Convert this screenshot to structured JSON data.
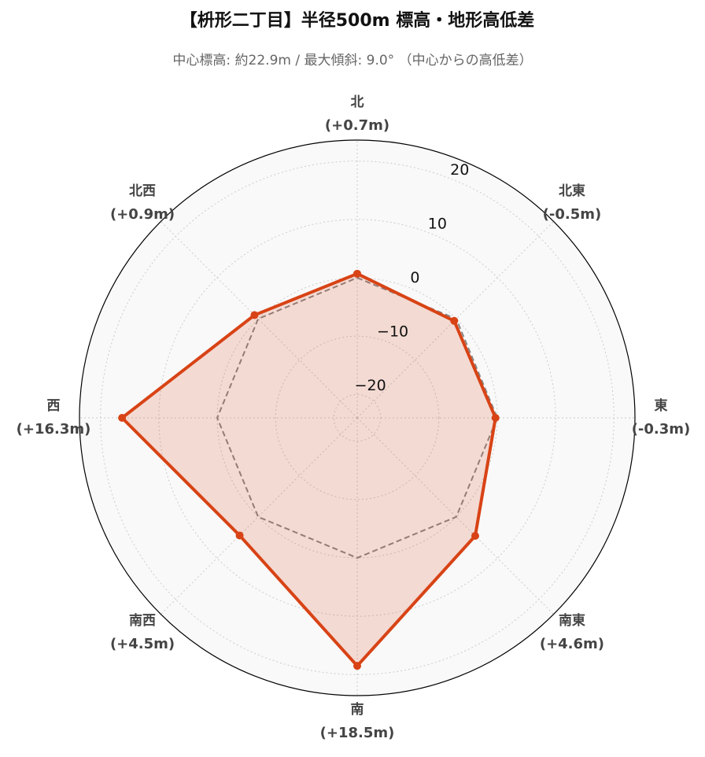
{
  "chart_data": {
    "type": "radar",
    "title": "【枡形二丁目】半径500m 標高・地形高低差",
    "subtitle": "中心標高: 約22.9m / 最大傾斜: 9.0° （中心からの高低差）",
    "categories": [
      "北",
      "北東",
      "東",
      "南東",
      "南",
      "南西",
      "西",
      "北西"
    ],
    "values": [
      0.7,
      -0.5,
      -0.3,
      4.6,
      18.5,
      4.5,
      16.3,
      0.9
    ],
    "value_labels": [
      "(+0.7m)",
      "(-0.5m)",
      "(-0.3m)",
      "(+4.6m)",
      "(+18.5m)",
      "(+4.5m)",
      "(+16.3m)",
      "(+0.9m)"
    ],
    "color": "#d84315",
    "reference": 0,
    "ylim": [
      -24,
      23.6
    ],
    "yticks": [
      {
        "value": -20,
        "label": "−20"
      },
      {
        "value": -10,
        "label": "−10"
      },
      0,
      10,
      20
    ],
    "grid": true
  }
}
